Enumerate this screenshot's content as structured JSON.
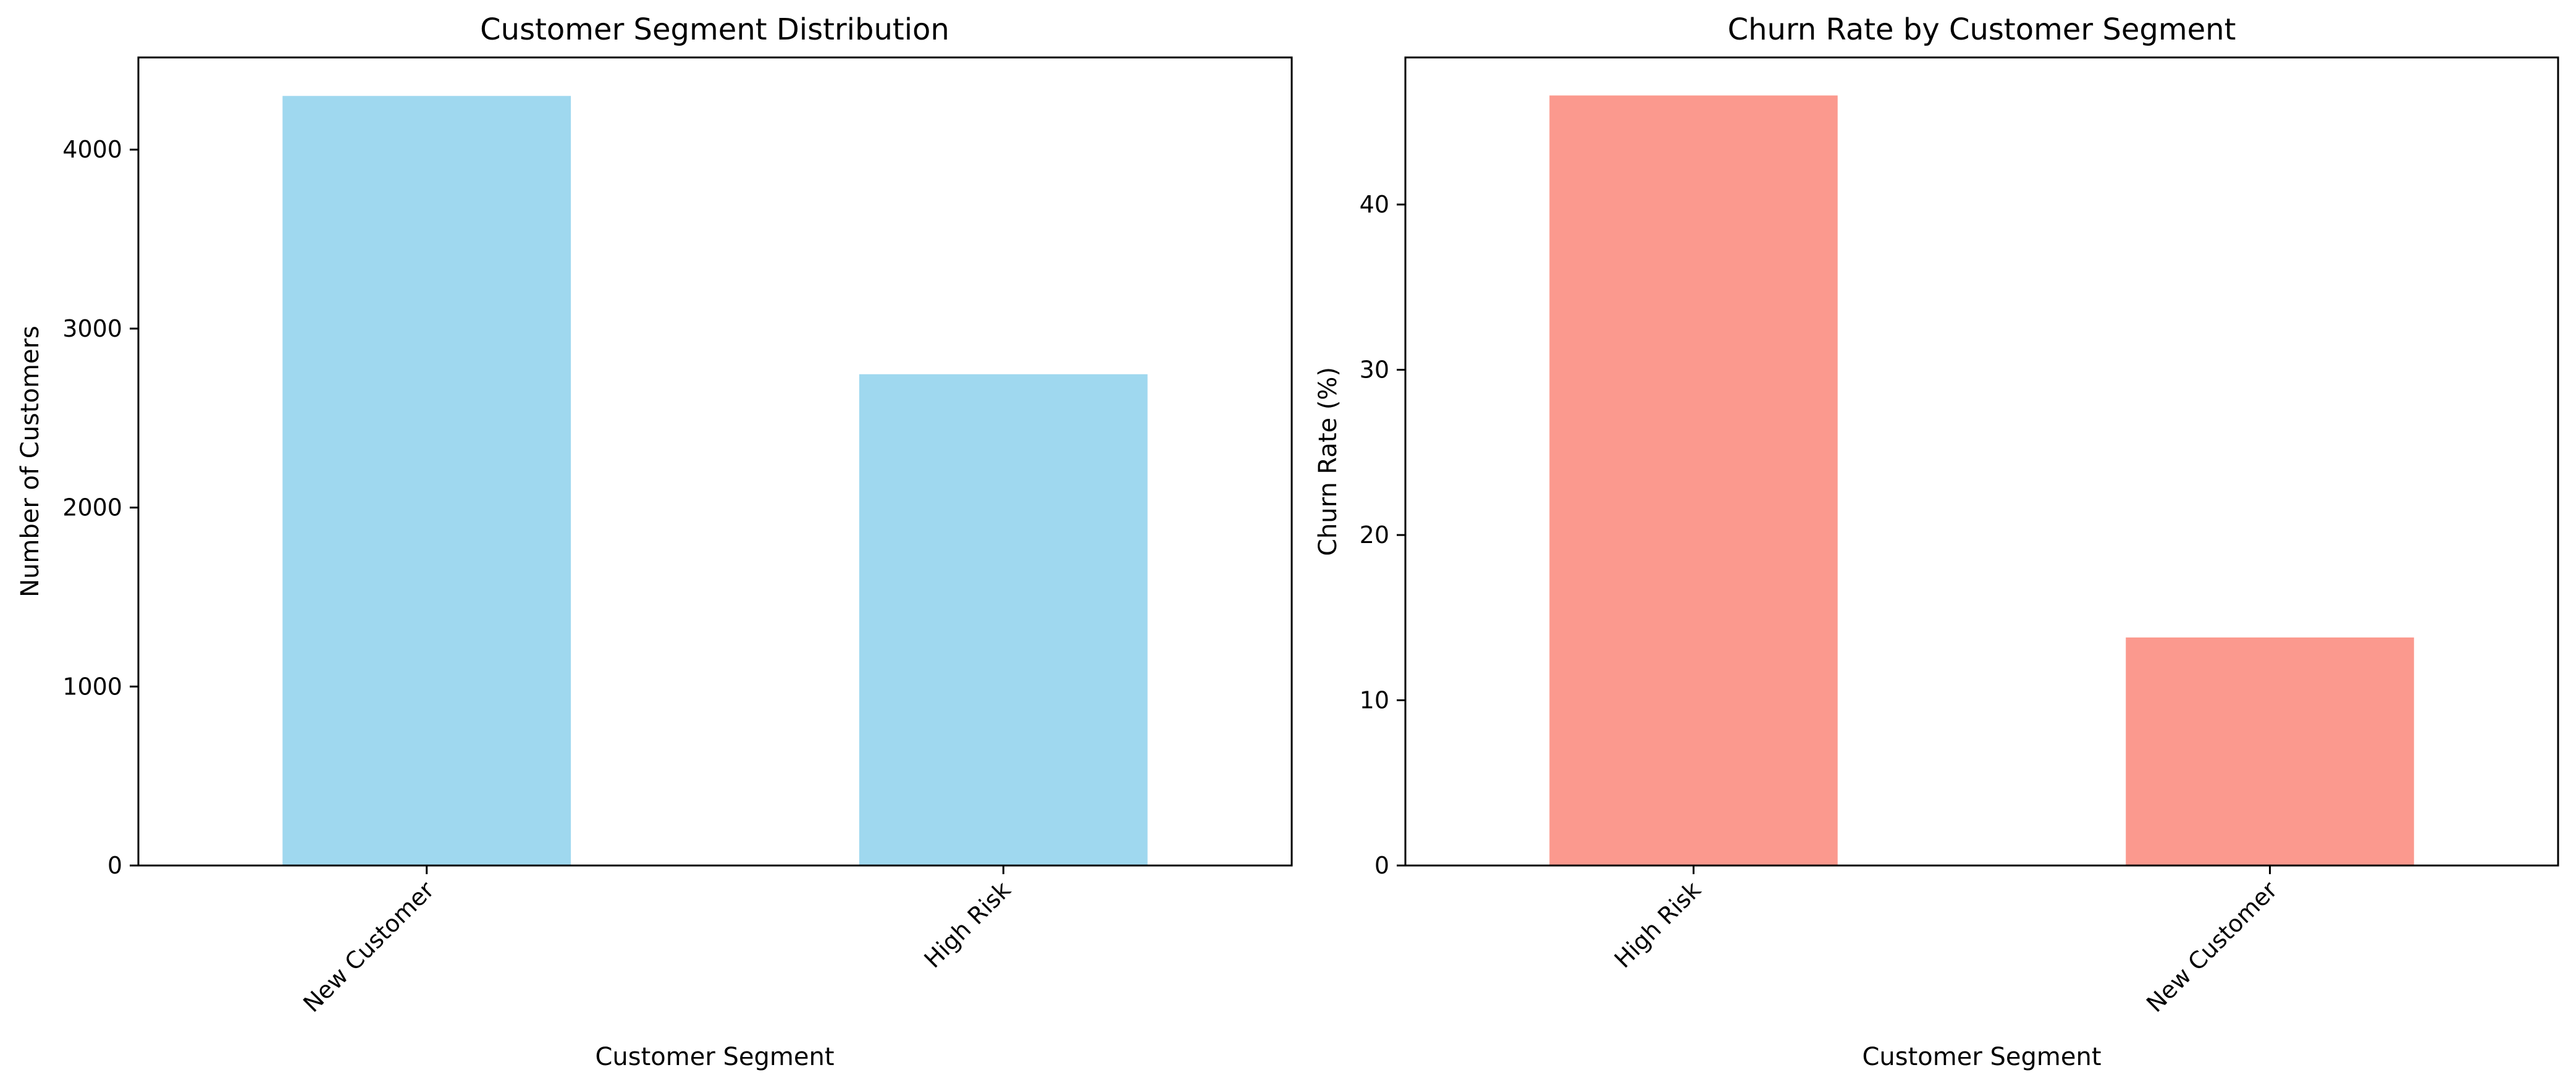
{
  "figure": {
    "background": "#ffffff"
  },
  "chart_data": [
    {
      "id": "segment-distribution",
      "type": "bar",
      "title": "Customer Segment Distribution",
      "xlabel": "Customer Segment",
      "ylabel": "Number of Customers",
      "categories": [
        "New Customer",
        "High Risk"
      ],
      "values": [
        4300,
        2745
      ],
      "ylim": [
        0,
        4515
      ],
      "yticks": [
        0,
        1000,
        2000,
        3000,
        4000
      ],
      "xtick_rotation": 45,
      "color": "#87ceeb",
      "bar_opacity": 0.8,
      "grid": false,
      "legend": "none"
    },
    {
      "id": "churn-rate",
      "type": "bar",
      "title": "Churn Rate by Customer Segment",
      "xlabel": "Customer Segment",
      "ylabel": "Churn Rate (%)",
      "categories": [
        "High Risk",
        "New Customer"
      ],
      "values": [
        46.6,
        13.8
      ],
      "ylim": [
        0,
        48.9
      ],
      "yticks": [
        0,
        10,
        20,
        30,
        40
      ],
      "xtick_rotation": 45,
      "color": "#fa8072",
      "bar_opacity": 0.8,
      "grid": false,
      "legend": "none"
    }
  ]
}
